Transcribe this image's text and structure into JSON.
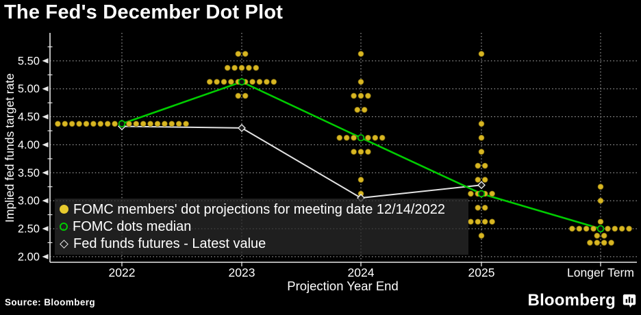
{
  "title": "The Fed's December Dot Plot",
  "source_label": "Source: Bloomberg",
  "branding": {
    "wordmark": "Bloomberg",
    "icon": "bar-chart-bubble-icon"
  },
  "legend": {
    "items": [
      {
        "marker": "yellow-dot",
        "label": "FOMC members' dot projections for meeting date 12/14/2022"
      },
      {
        "marker": "green-open-circle",
        "label": "FOMC dots median"
      },
      {
        "marker": "white-open-diamond",
        "label": "Fed funds futures - Latest value"
      }
    ]
  },
  "chart_data": {
    "type": "scatter",
    "title": "The Fed's December Dot Plot",
    "xlabel": "Projection Year End",
    "ylabel": "Implied fed funds target rate",
    "categories": [
      "2022",
      "2023",
      "2024",
      "2025",
      "Longer Term"
    ],
    "ylim": [
      1.9,
      6.0
    ],
    "grid": true,
    "legend_position": "lower-left",
    "y_axis": {
      "tick_labels": [
        "5.50",
        "5.00",
        "4.50",
        "4.00",
        "3.50",
        "3.00",
        "2.50",
        "2.00"
      ],
      "tick_values": [
        5.5,
        5.0,
        4.5,
        4.0,
        3.5,
        3.0,
        2.5,
        2.0
      ],
      "minor_tick_values": [
        5.75,
        5.25,
        4.75,
        4.25,
        3.75,
        3.25,
        2.75,
        2.25
      ]
    },
    "series": [
      {
        "name": "FOMC members' dot projections for meeting date 12/14/2022",
        "type": "dot-distribution",
        "color": "#d8b622",
        "distributions": [
          {
            "category": "2022",
            "dots": [
              {
                "rate": 4.375,
                "count": 19
              }
            ]
          },
          {
            "category": "2023",
            "dots": [
              {
                "rate": 5.625,
                "count": 2
              },
              {
                "rate": 5.375,
                "count": 5
              },
              {
                "rate": 5.125,
                "count": 10
              },
              {
                "rate": 4.875,
                "count": 2
              }
            ]
          },
          {
            "category": "2024",
            "dots": [
              {
                "rate": 5.625,
                "count": 1
              },
              {
                "rate": 5.125,
                "count": 1
              },
              {
                "rate": 4.875,
                "count": 3
              },
              {
                "rate": 4.625,
                "count": 2
              },
              {
                "rate": 4.125,
                "count": 7
              },
              {
                "rate": 3.875,
                "count": 3
              },
              {
                "rate": 3.375,
                "count": 1
              },
              {
                "rate": 3.125,
                "count": 1
              }
            ]
          },
          {
            "category": "2025",
            "dots": [
              {
                "rate": 5.625,
                "count": 1
              },
              {
                "rate": 4.375,
                "count": 1
              },
              {
                "rate": 4.125,
                "count": 1
              },
              {
                "rate": 3.875,
                "count": 1
              },
              {
                "rate": 3.625,
                "count": 2
              },
              {
                "rate": 3.375,
                "count": 2
              },
              {
                "rate": 3.125,
                "count": 4
              },
              {
                "rate": 2.875,
                "count": 2
              },
              {
                "rate": 2.625,
                "count": 4
              },
              {
                "rate": 2.375,
                "count": 1
              }
            ]
          },
          {
            "category": "Longer Term",
            "dots": [
              {
                "rate": 3.25,
                "count": 1
              },
              {
                "rate": 3.0,
                "count": 1
              },
              {
                "rate": 2.625,
                "count": 1
              },
              {
                "rate": 2.5,
                "count": 9
              },
              {
                "rate": 2.375,
                "count": 2
              },
              {
                "rate": 2.25,
                "count": 4
              }
            ]
          }
        ]
      },
      {
        "name": "FOMC dots median",
        "type": "line",
        "color": "#00cc00",
        "marker": "open-circle",
        "x": [
          "2022",
          "2023",
          "2024",
          "2025",
          "Longer Term"
        ],
        "values": [
          4.375,
          5.125,
          4.125,
          3.125,
          2.5
        ]
      },
      {
        "name": "Fed funds futures - Latest value",
        "type": "line",
        "color": "#e2e2e2",
        "marker": "open-diamond",
        "x": [
          "2022",
          "2023",
          "2024",
          "2025"
        ],
        "values": [
          4.33,
          4.3,
          3.05,
          3.28
        ]
      }
    ]
  },
  "colors": {
    "background": "#000000",
    "text": "#ffffff",
    "grid": "#c9c9c9",
    "axis": "#e8e8e8",
    "dot": "#d8b622",
    "median": "#00cc00",
    "futures": "#e2e2e2"
  }
}
